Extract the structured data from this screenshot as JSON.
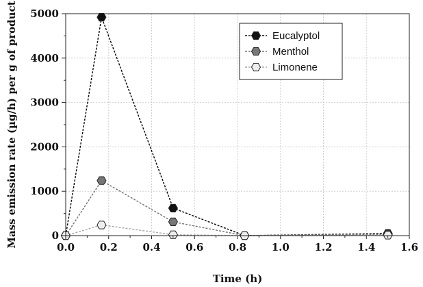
{
  "chart_data": {
    "type": "line",
    "xlabel": "Time (h)",
    "ylabel": "Mass emission rate (µg/h) per g of product",
    "xlim": [
      0.0,
      1.6
    ],
    "ylim": [
      0,
      5000
    ],
    "x_ticks": [
      "0.0",
      "0.2",
      "0.4",
      "0.6",
      "0.8",
      "1.0",
      "1.2",
      "1.4",
      "1.6"
    ],
    "y_ticks": [
      "0",
      "1000",
      "2000",
      "3000",
      "4000",
      "5000"
    ],
    "grid": true,
    "legend_position": "top-right",
    "series": [
      {
        "name": "Eucalyptol",
        "color": "#111111",
        "marker": "hexagon",
        "x": [
          0.0,
          0.167,
          0.5,
          0.833,
          1.5
        ],
        "y": [
          0,
          4920,
          620,
          0,
          50
        ]
      },
      {
        "name": "Menthol",
        "color": "#777777",
        "marker": "hexagon",
        "x": [
          0.0,
          0.167,
          0.5,
          0.833,
          1.5
        ],
        "y": [
          0,
          1240,
          310,
          0,
          30
        ]
      },
      {
        "name": "Limonene",
        "color": "#eeeeee",
        "line_color": "#aaaaaa",
        "marker": "hexagon",
        "x": [
          0.0,
          0.167,
          0.5,
          0.833,
          1.5
        ],
        "y": [
          0,
          240,
          20,
          0,
          10
        ]
      }
    ]
  }
}
